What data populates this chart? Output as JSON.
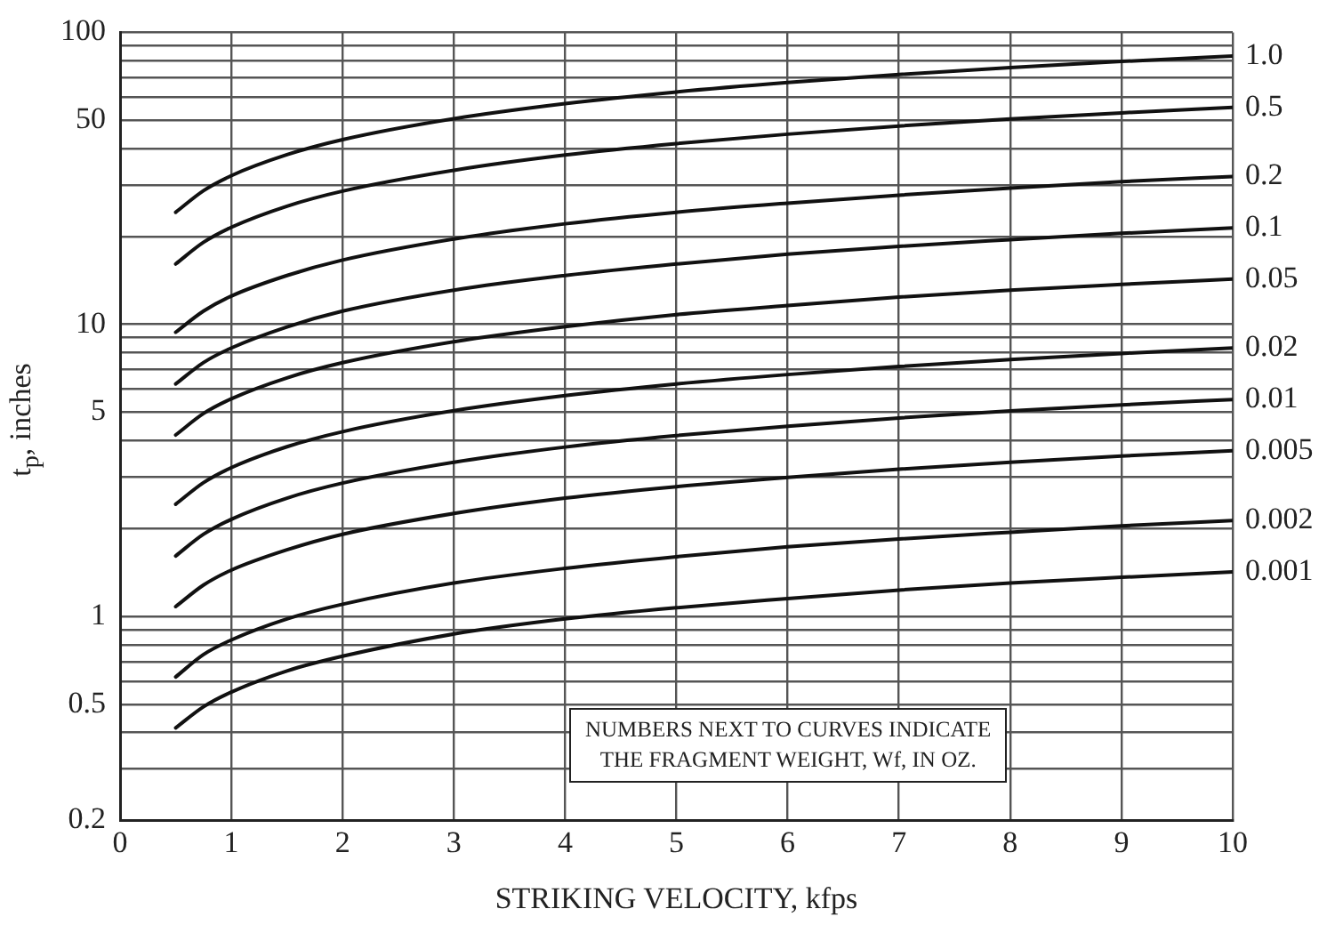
{
  "chart_data": {
    "type": "line",
    "xlabel": "STRIKING VELOCITY, kfps",
    "ylabel": "t$_{p}$, inches",
    "annotations": [
      "NUMBERS NEXT TO CURVES INDICATE\nTHE FRAGMENT WEIGHT, Wf, IN OZ."
    ],
    "x": [
      0.5,
      0.75,
      1,
      1.5,
      2,
      3,
      4,
      5,
      6,
      7,
      8,
      9,
      10
    ],
    "series": [
      {
        "name": "1.0",
        "color": "#111111",
        "values": [
          24.2,
          28.7,
          32.3,
          38.1,
          42.9,
          50.6,
          57.0,
          62.5,
          67.3,
          71.7,
          75.8,
          79.5,
          83
        ]
      },
      {
        "name": "0.5",
        "color": "#111111",
        "values": [
          16.1,
          19.1,
          21.5,
          25.4,
          28.6,
          33.7,
          38.0,
          41.6,
          44.8,
          47.8,
          50.5,
          53.0,
          55.3
        ]
      },
      {
        "name": "0.2",
        "color": "#111111",
        "values": [
          9.4,
          11.1,
          12.5,
          14.7,
          16.6,
          19.6,
          22.1,
          24.2,
          26.0,
          27.7,
          29.3,
          30.8,
          32.1
        ]
      },
      {
        "name": "0.1",
        "color": "#111111",
        "values": [
          6.25,
          7.4,
          8.3,
          9.8,
          11.1,
          13.1,
          14.7,
          16.1,
          17.4,
          18.5,
          19.5,
          20.5,
          21.4
        ]
      },
      {
        "name": "0.05",
        "color": "#111111",
        "values": [
          4.18,
          4.95,
          5.56,
          6.56,
          7.39,
          8.72,
          9.82,
          10.8,
          11.6,
          12.4,
          13.1,
          13.7,
          14.3
        ]
      },
      {
        "name": "0.02",
        "color": "#111111",
        "values": [
          2.42,
          2.87,
          3.23,
          3.81,
          4.29,
          5.06,
          5.7,
          6.25,
          6.73,
          7.17,
          7.58,
          7.95,
          8.3
        ]
      },
      {
        "name": "0.01",
        "color": "#111111",
        "values": [
          1.61,
          1.91,
          2.15,
          2.54,
          2.86,
          3.37,
          3.8,
          4.16,
          4.48,
          4.78,
          5.05,
          5.3,
          5.53
        ]
      },
      {
        "name": "0.005",
        "color": "#111111",
        "values": [
          1.08,
          1.28,
          1.44,
          1.69,
          1.91,
          2.25,
          2.54,
          2.78,
          2.99,
          3.19,
          3.37,
          3.54,
          3.69
        ]
      },
      {
        "name": "0.002",
        "color": "#111111",
        "values": [
          0.62,
          0.74,
          0.83,
          0.98,
          1.1,
          1.3,
          1.46,
          1.6,
          1.73,
          1.84,
          1.94,
          2.04,
          2.13
        ]
      },
      {
        "name": "0.001",
        "color": "#111111",
        "values": [
          0.415,
          0.49,
          0.55,
          0.65,
          0.73,
          0.87,
          0.98,
          1.07,
          1.15,
          1.23,
          1.3,
          1.36,
          1.42
        ]
      }
    ],
    "xlim": [
      0,
      10
    ],
    "xticks": [
      0,
      1,
      2,
      3,
      4,
      5,
      6,
      7,
      8,
      9,
      10
    ],
    "log": "y",
    "ylim": [
      0.2,
      100
    ],
    "yticks": [
      0.2,
      {
        "value": 0.3,
        "label": null
      },
      {
        "value": 0.4,
        "label": null
      },
      0.5,
      {
        "value": 0.6,
        "label": null
      },
      {
        "value": 0.7,
        "label": null
      },
      {
        "value": 0.8,
        "label": null
      },
      {
        "value": 0.9,
        "label": null
      },
      1,
      {
        "value": 2,
        "label": null
      },
      {
        "value": 3,
        "label": null
      },
      {
        "value": 4,
        "label": null
      },
      5,
      {
        "value": 6,
        "label": null
      },
      {
        "value": 7,
        "label": null
      },
      {
        "value": 8,
        "label": null
      },
      {
        "value": 9,
        "label": null
      },
      10,
      {
        "value": 20,
        "label": null
      },
      {
        "value": 30,
        "label": null
      },
      {
        "value": 40,
        "label": null
      },
      50,
      {
        "value": 60,
        "label": null
      },
      {
        "value": 70,
        "label": null
      },
      {
        "value": 80,
        "label": null
      },
      {
        "value": 90,
        "label": null
      },
      100
    ],
    "grid": true,
    "legend": false,
    "marker": "none",
    "line_style": "solid"
  }
}
